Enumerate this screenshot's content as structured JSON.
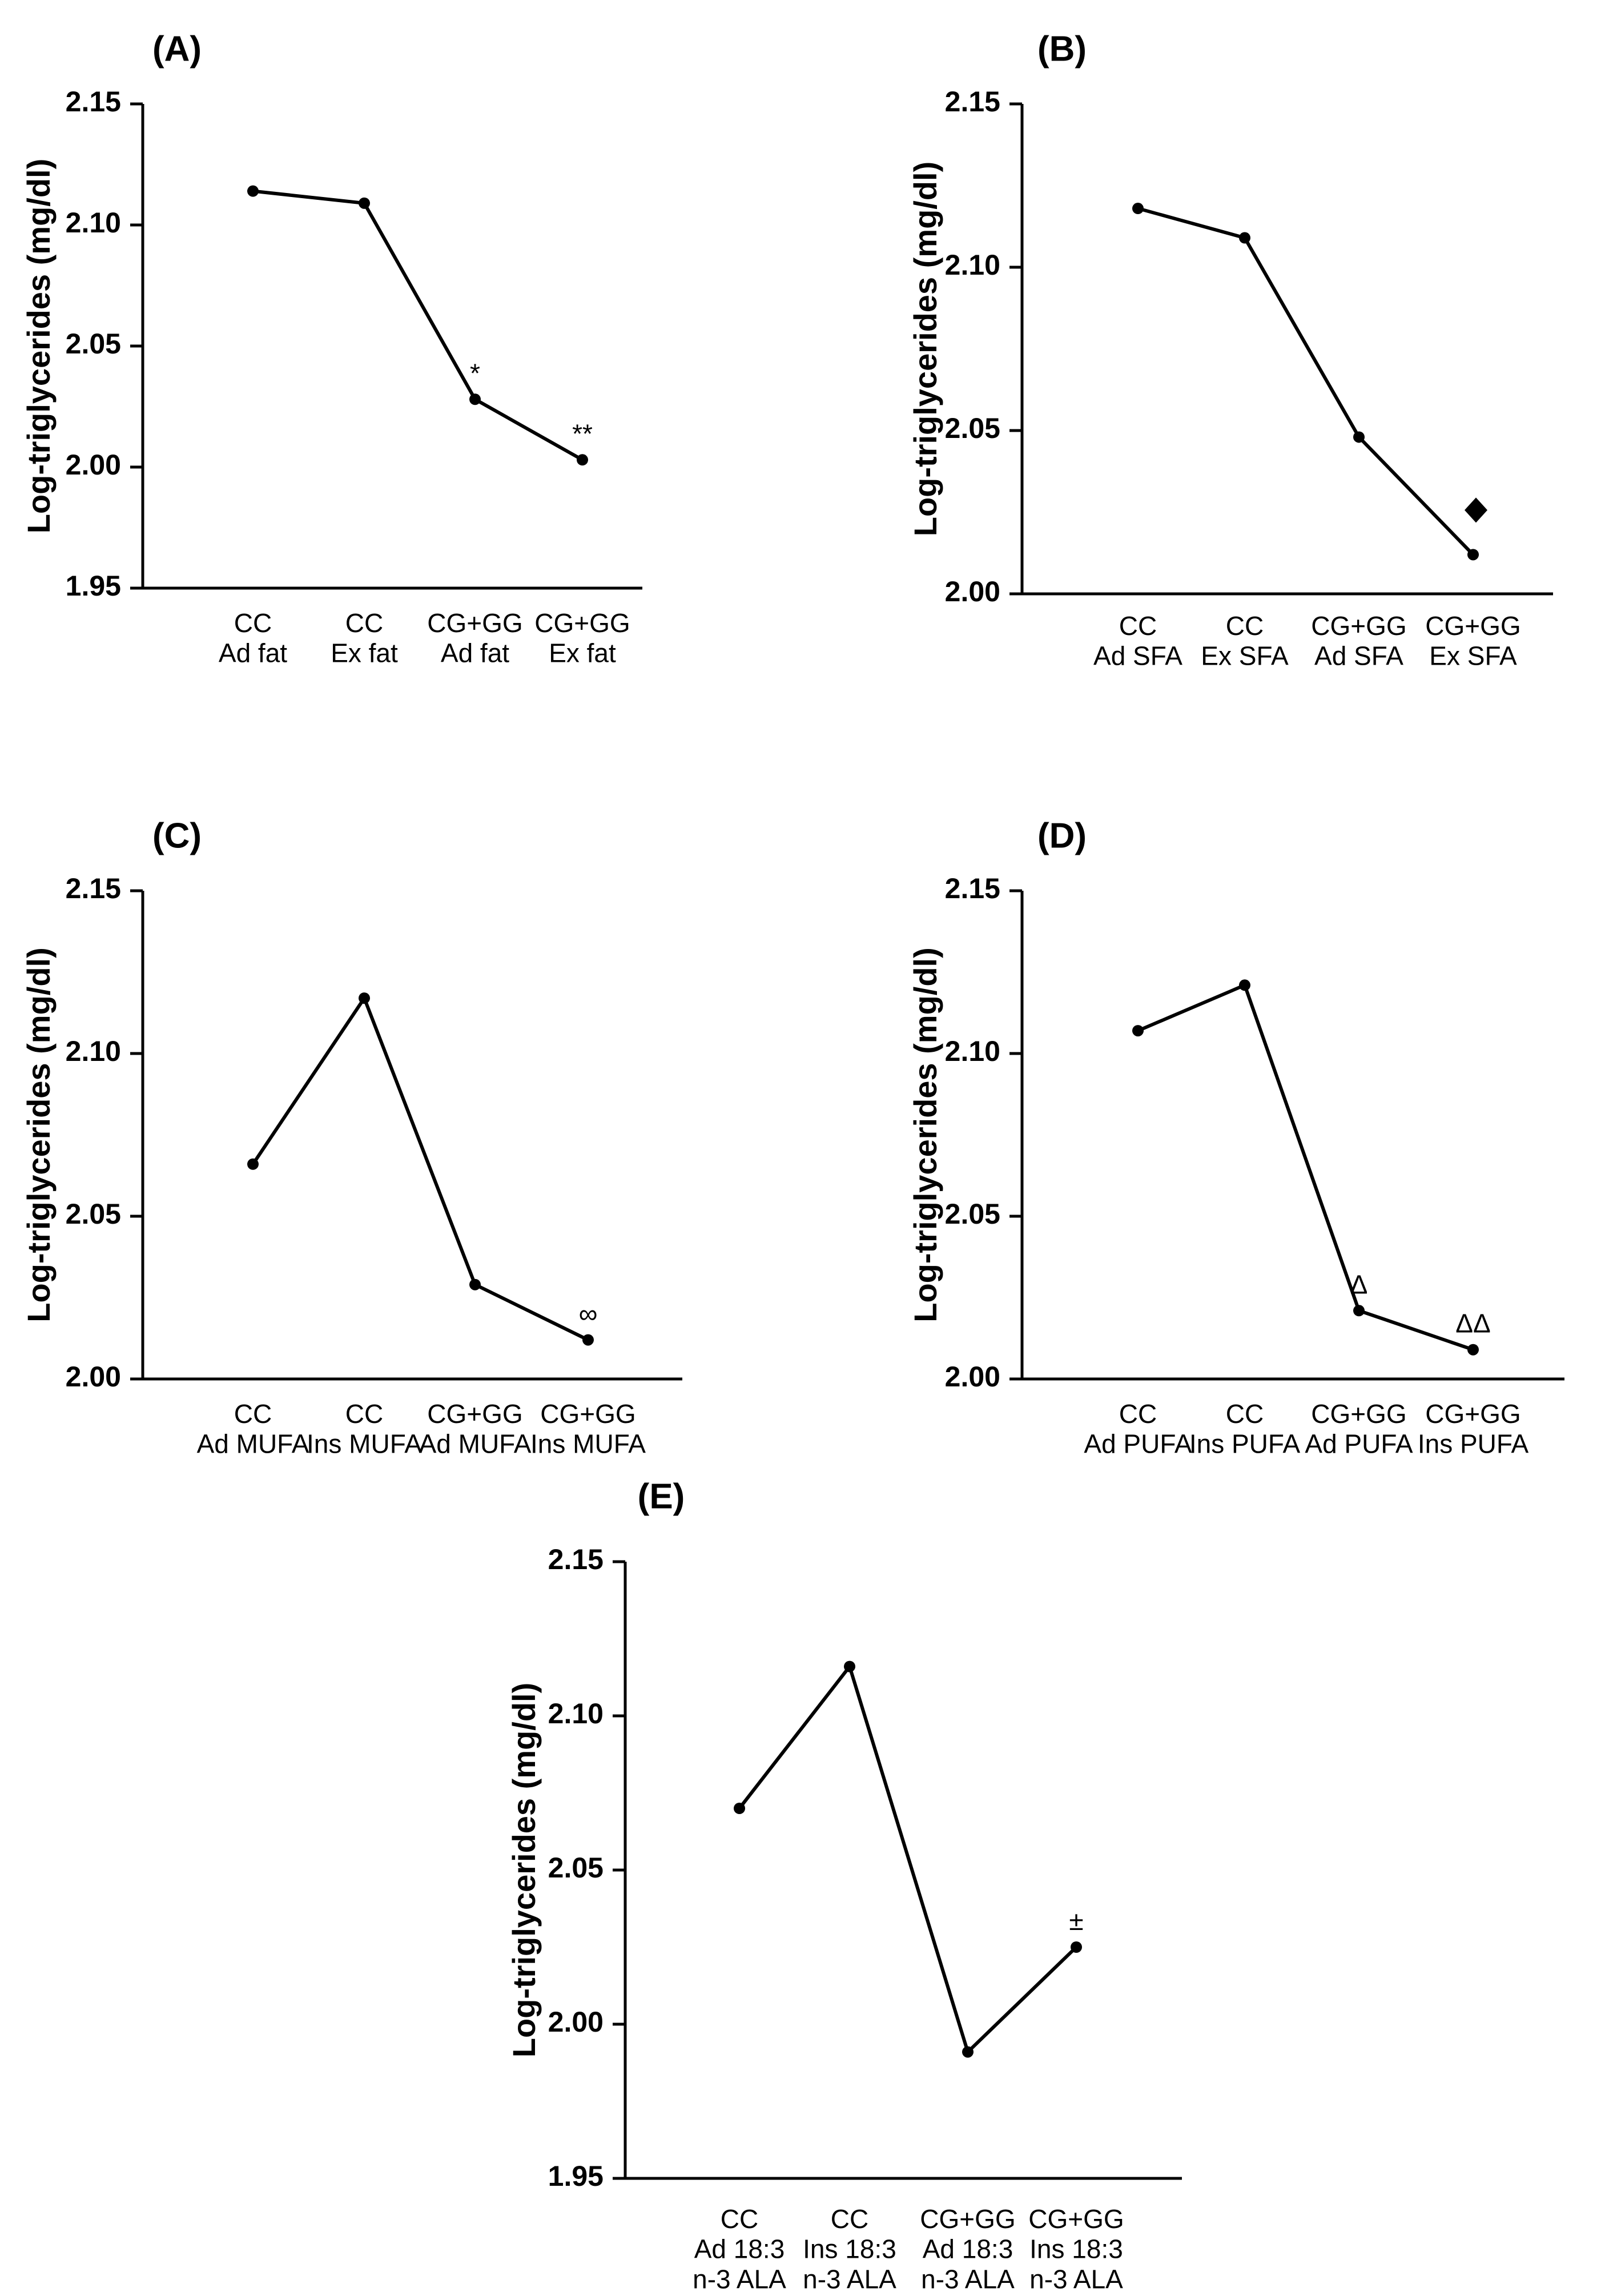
{
  "chart_data": [
    {
      "type": "line",
      "panel_label": "(A)",
      "ylabel": "Log-triglycerides (mg/dl)",
      "ylim": [
        1.95,
        2.15
      ],
      "yticks": [
        "1.95",
        "2.00",
        "2.05",
        "2.10",
        "2.15"
      ],
      "categories": [
        [
          "CC",
          "Ad fat"
        ],
        [
          "CC",
          "Ex fat"
        ],
        [
          "CG+GG",
          "Ad fat"
        ],
        [
          "CG+GG",
          "Ex fat"
        ]
      ],
      "values": [
        2.114,
        2.109,
        2.028,
        2.003
      ],
      "annotations": [
        "",
        "",
        "*",
        "**"
      ],
      "marker_annotation": ""
    },
    {
      "type": "line",
      "panel_label": "(B)",
      "ylabel": "Log-triglycerides (mg/dl)",
      "ylim": [
        2.0,
        2.15
      ],
      "yticks": [
        "2.00",
        "2.05",
        "2.10",
        "2.15"
      ],
      "categories": [
        [
          "CC",
          "Ad SFA"
        ],
        [
          "CC",
          "Ex SFA"
        ],
        [
          "CG+GG",
          "Ad SFA"
        ],
        [
          "CG+GG",
          "Ex SFA"
        ]
      ],
      "values": [
        2.118,
        2.109,
        2.048,
        2.012
      ],
      "annotations": [
        "",
        "",
        "",
        ""
      ],
      "marker_annotation": "diamond"
    },
    {
      "type": "line",
      "panel_label": "(C)",
      "ylabel": "Log-triglycerides (mg/dl)",
      "ylim": [
        2.0,
        2.15
      ],
      "yticks": [
        "2.00",
        "2.05",
        "2.10",
        "2.15"
      ],
      "categories": [
        [
          "CC",
          "Ad MUFA"
        ],
        [
          "CC",
          "Ins MUFA"
        ],
        [
          "CG+GG",
          "Ad MUFA"
        ],
        [
          "CG+GG",
          "Ins MUFA"
        ]
      ],
      "values": [
        2.066,
        2.117,
        2.029,
        2.012
      ],
      "annotations": [
        "",
        "",
        "",
        "∞"
      ],
      "marker_annotation": ""
    },
    {
      "type": "line",
      "panel_label": "(D)",
      "ylabel": "Log-triglycerides (mg/dl)",
      "ylim": [
        2.0,
        2.15
      ],
      "yticks": [
        "2.00",
        "2.05",
        "2.10",
        "2.15"
      ],
      "categories": [
        [
          "CC",
          "Ad PUFA"
        ],
        [
          "CC",
          "Ins PUFA"
        ],
        [
          "CG+GG",
          "Ad PUFA"
        ],
        [
          "CG+GG",
          "Ins PUFA"
        ]
      ],
      "values": [
        2.107,
        2.121,
        2.021,
        2.009
      ],
      "annotations": [
        "",
        "",
        "Δ",
        "ΔΔ"
      ],
      "marker_annotation": ""
    },
    {
      "type": "line",
      "panel_label": "(E)",
      "ylabel": "Log-triglycerides (mg/dl)",
      "ylim": [
        1.95,
        2.15
      ],
      "yticks": [
        "1.95",
        "2.00",
        "2.05",
        "2.10",
        "2.15"
      ],
      "categories": [
        [
          "CC",
          "Ad 18:3",
          "n-3 ALA"
        ],
        [
          "CC",
          "Ins 18:3",
          "n-3 ALA"
        ],
        [
          "CG+GG",
          "Ad 18:3",
          "n-3 ALA"
        ],
        [
          "CG+GG",
          "Ins 18:3",
          "n-3 ALA"
        ]
      ],
      "values": [
        2.07,
        2.116,
        1.991,
        2.025
      ],
      "annotations": [
        "",
        "",
        "",
        "±"
      ],
      "marker_annotation": ""
    }
  ]
}
